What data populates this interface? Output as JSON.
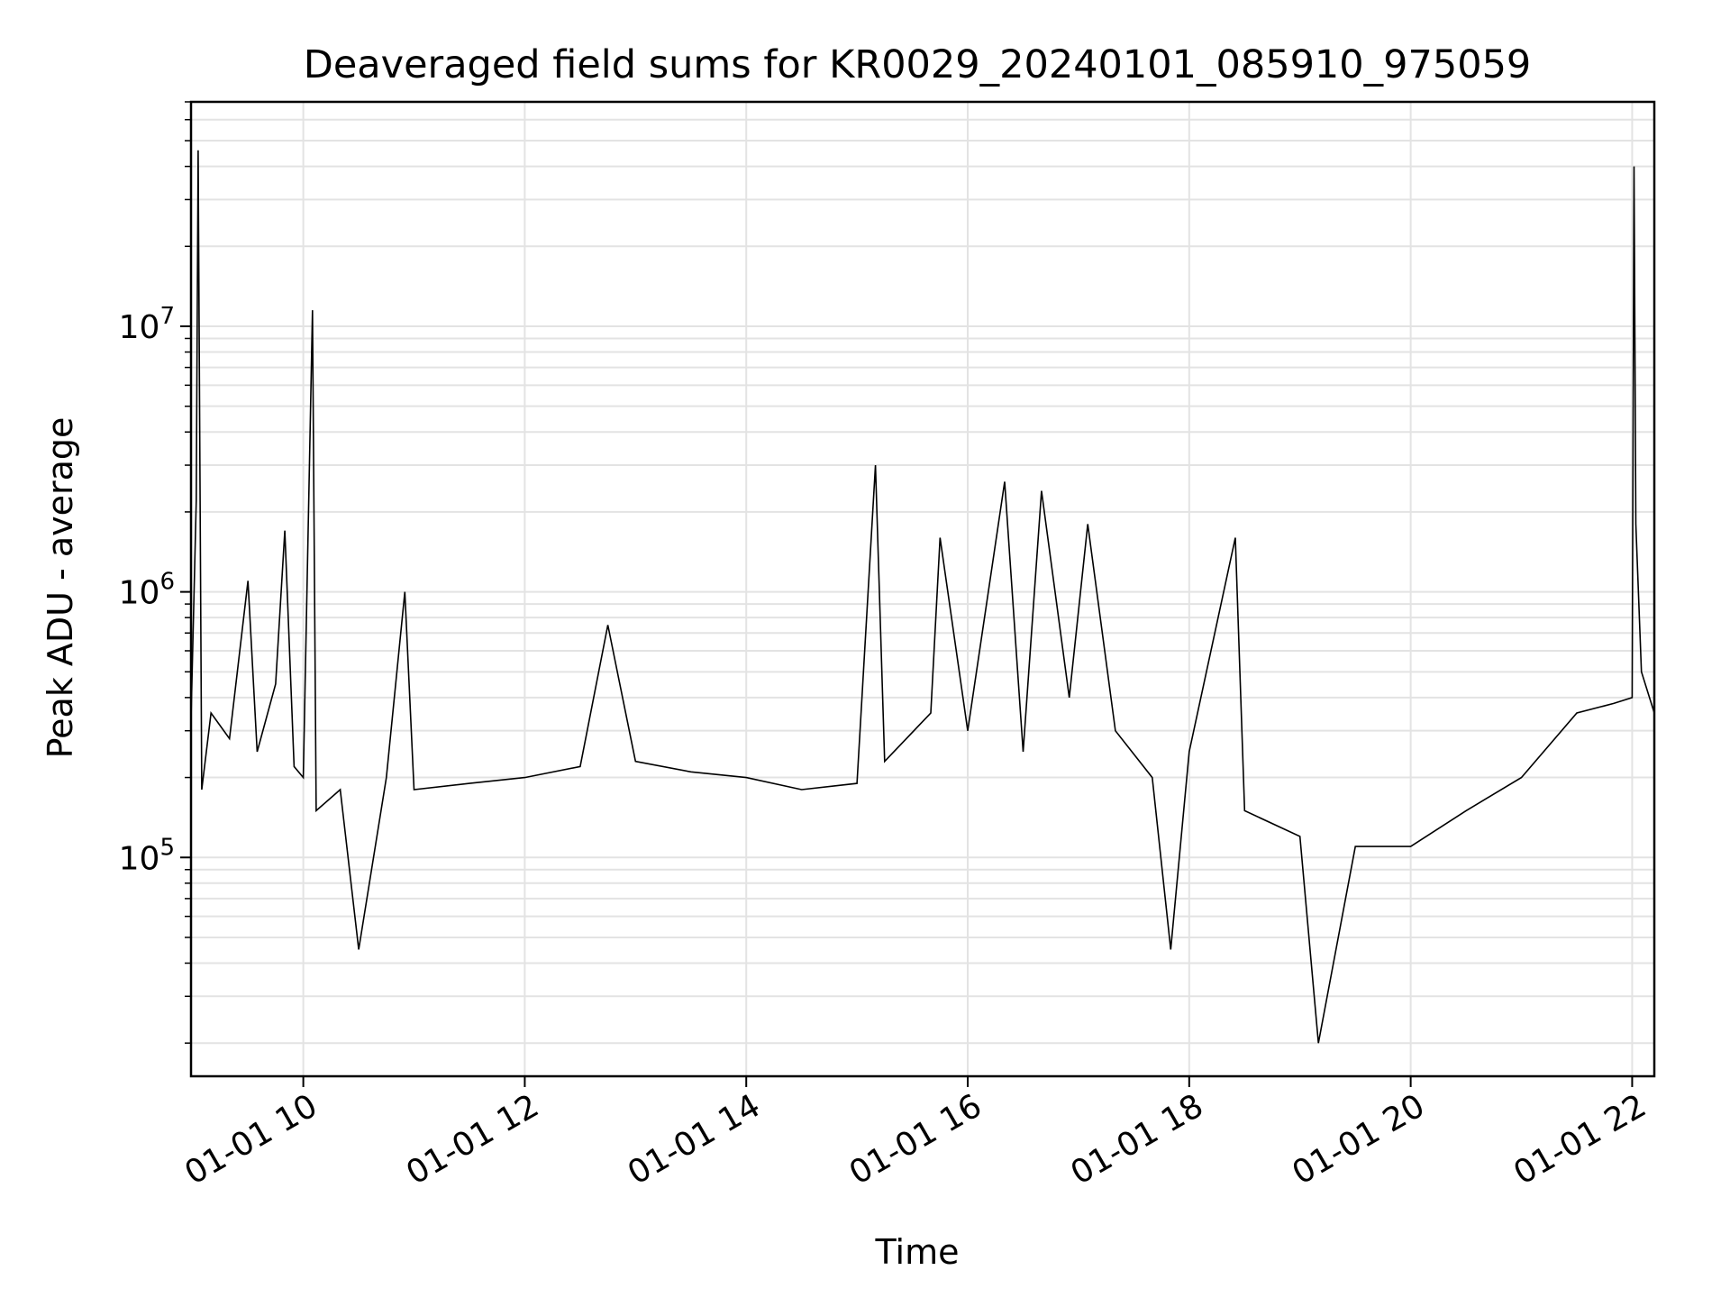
{
  "chart_data": {
    "type": "line",
    "title": "Deaveraged field sums for KR0029_20240101_085910_975059",
    "xlabel": "Time",
    "ylabel": "Peak ADU - average",
    "y_scale": "log",
    "x_start": "2024-01-01 08:59:10",
    "x_end": "2024-01-01 22:12:00",
    "ylim": [
      15000,
      70000000
    ],
    "grid": true,
    "x_ticks": [
      {
        "value": "2024-01-01 10:00",
        "label": "01-01 10"
      },
      {
        "value": "2024-01-01 12:00",
        "label": "01-01 12"
      },
      {
        "value": "2024-01-01 14:00",
        "label": "01-01 14"
      },
      {
        "value": "2024-01-01 16:00",
        "label": "01-01 16"
      },
      {
        "value": "2024-01-01 18:00",
        "label": "01-01 18"
      },
      {
        "value": "2024-01-01 20:00",
        "label": "01-01 20"
      },
      {
        "value": "2024-01-01 22:00",
        "label": "01-01 22"
      }
    ],
    "y_ticks": [
      {
        "value": 100000,
        "base": "10",
        "exp": "5"
      },
      {
        "value": 1000000,
        "base": "10",
        "exp": "6"
      },
      {
        "value": 10000000,
        "base": "10",
        "exp": "7"
      }
    ],
    "line_color": "#000000",
    "series": [
      {
        "points": [
          [
            "2024-01-01 08:59",
            300000
          ],
          [
            "2024-01-01 09:02",
            2200000
          ],
          [
            "2024-01-01 09:03",
            46000000
          ],
          [
            "2024-01-01 09:05",
            180000
          ],
          [
            "2024-01-01 09:10",
            350000
          ],
          [
            "2024-01-01 09:20",
            280000
          ],
          [
            "2024-01-01 09:30",
            1100000
          ],
          [
            "2024-01-01 09:35",
            250000
          ],
          [
            "2024-01-01 09:45",
            450000
          ],
          [
            "2024-01-01 09:50",
            1700000
          ],
          [
            "2024-01-01 09:55",
            220000
          ],
          [
            "2024-01-01 10:00",
            200000
          ],
          [
            "2024-01-01 10:05",
            11500000
          ],
          [
            "2024-01-01 10:07",
            150000
          ],
          [
            "2024-01-01 10:20",
            180000
          ],
          [
            "2024-01-01 10:30",
            45000
          ],
          [
            "2024-01-01 10:45",
            200000
          ],
          [
            "2024-01-01 10:55",
            1000000
          ],
          [
            "2024-01-01 11:00",
            180000
          ],
          [
            "2024-01-01 11:30",
            190000
          ],
          [
            "2024-01-01 12:00",
            200000
          ],
          [
            "2024-01-01 12:30",
            220000
          ],
          [
            "2024-01-01 12:45",
            750000
          ],
          [
            "2024-01-01 13:00",
            230000
          ],
          [
            "2024-01-01 13:30",
            210000
          ],
          [
            "2024-01-01 14:00",
            200000
          ],
          [
            "2024-01-01 14:30",
            180000
          ],
          [
            "2024-01-01 15:00",
            190000
          ],
          [
            "2024-01-01 15:10",
            3000000
          ],
          [
            "2024-01-01 15:15",
            230000
          ],
          [
            "2024-01-01 15:40",
            350000
          ],
          [
            "2024-01-01 15:45",
            1600000
          ],
          [
            "2024-01-01 16:00",
            300000
          ],
          [
            "2024-01-01 16:20",
            2600000
          ],
          [
            "2024-01-01 16:30",
            250000
          ],
          [
            "2024-01-01 16:40",
            2400000
          ],
          [
            "2024-01-01 16:55",
            400000
          ],
          [
            "2024-01-01 17:05",
            1800000
          ],
          [
            "2024-01-01 17:20",
            300000
          ],
          [
            "2024-01-01 17:40",
            200000
          ],
          [
            "2024-01-01 17:50",
            45000
          ],
          [
            "2024-01-01 18:00",
            250000
          ],
          [
            "2024-01-01 18:25",
            1600000
          ],
          [
            "2024-01-01 18:30",
            150000
          ],
          [
            "2024-01-01 19:00",
            120000
          ],
          [
            "2024-01-01 19:10",
            20000
          ],
          [
            "2024-01-01 19:30",
            110000
          ],
          [
            "2024-01-01 20:00",
            110000
          ],
          [
            "2024-01-01 20:30",
            150000
          ],
          [
            "2024-01-01 21:00",
            200000
          ],
          [
            "2024-01-01 21:30",
            350000
          ],
          [
            "2024-01-01 21:50",
            380000
          ],
          [
            "2024-01-01 22:00",
            400000
          ],
          [
            "2024-01-01 22:01",
            40000000
          ],
          [
            "2024-01-01 22:02",
            1800000
          ],
          [
            "2024-01-01 22:05",
            500000
          ],
          [
            "2024-01-01 22:12",
            350000
          ]
        ]
      }
    ]
  }
}
